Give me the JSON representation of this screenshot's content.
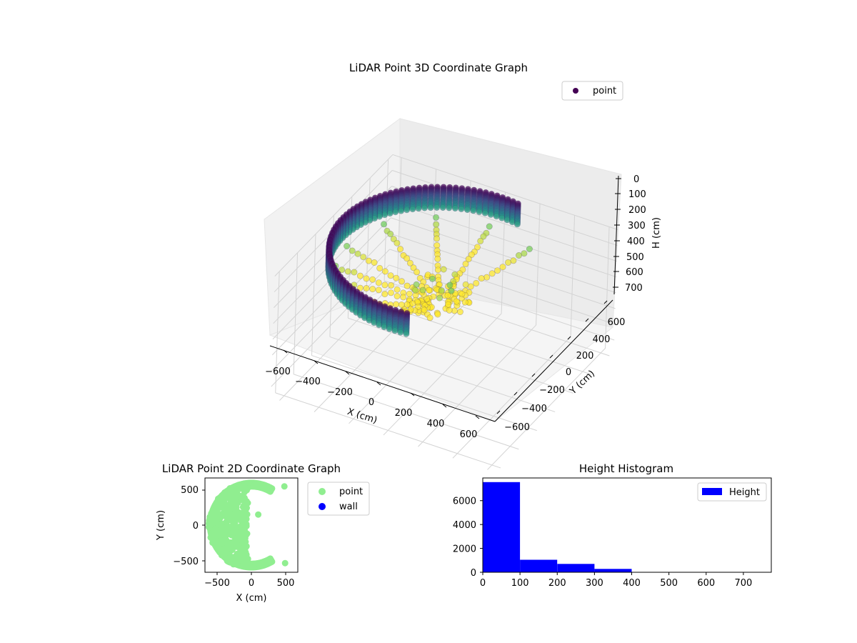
{
  "figure": {
    "background": "#ffffff"
  },
  "chart_data": [
    {
      "type": "scatter",
      "projection": "3d",
      "title": "LiDAR Point 3D Coordinate Graph",
      "xlabel": "X (cm)",
      "ylabel": "Y (cm)",
      "zlabel": "H (cm)",
      "xlim": [
        -650,
        650
      ],
      "ylim": [
        -650,
        650
      ],
      "zlim": [
        770,
        0
      ],
      "z_axis_inverted": true,
      "x_ticks": [
        "−600",
        "−400",
        "−200",
        "0",
        "200",
        "400",
        "600"
      ],
      "y_ticks": [
        "−600",
        "−400",
        "−200",
        "0",
        "200",
        "400",
        "600"
      ],
      "z_ticks": [
        "0",
        "100",
        "200",
        "300",
        "400",
        "500",
        "600",
        "700"
      ],
      "colormap": "viridis",
      "grid": true,
      "legend": {
        "position": "top-right",
        "entries": [
          {
            "label": "point",
            "color": "#440154"
          }
        ]
      },
      "series": [
        {
          "name": "point",
          "wall": {
            "radius_cm": 600,
            "start_angle_deg": 80,
            "end_angle_deg": 280,
            "height_range_cm": [
              0,
              130
            ],
            "angle_step_deg": 3,
            "height_step_cm": 10
          },
          "fan_lines_deg": [
            60,
            90,
            120,
            150,
            180,
            200,
            215,
            235,
            255
          ],
          "inner_cluster": {
            "x_range_cm": [
              -200,
              80
            ],
            "y_range_cm": [
              -100,
              180
            ],
            "height_cm": [
              200,
              400
            ]
          }
        }
      ]
    },
    {
      "type": "scatter",
      "title": "LiDAR Point 2D Coordinate Graph",
      "xlabel": "X (cm)",
      "ylabel": "Y (cm)",
      "xlim": [
        -680,
        680
      ],
      "ylim": [
        -680,
        680
      ],
      "x_ticks": [
        -500,
        0,
        500
      ],
      "y_ticks": [
        -500,
        0,
        500
      ],
      "x_tick_labels": [
        "−500",
        "0",
        "500"
      ],
      "y_tick_labels": [
        "−500",
        "0",
        "500"
      ],
      "legend": {
        "position": "outside-right",
        "entries": [
          {
            "label": "point",
            "color": "#90ee90"
          },
          {
            "label": "wall",
            "color": "#0000ff"
          }
        ]
      },
      "series": [
        {
          "name": "point",
          "color": "#90ee90",
          "arc": {
            "radius_cm": 600,
            "start_angle_deg": 60,
            "end_angle_deg": 300
          },
          "fill_region": {
            "x_range_cm": [
              -620,
              -50
            ],
            "y_range_cm": [
              -560,
              560
            ]
          },
          "outliers": [
            [
              100,
              150
            ],
            [
              -50,
              -480
            ],
            [
              480,
              550
            ],
            [
              490,
              -540
            ],
            [
              160,
              -540
            ]
          ]
        },
        {
          "name": "wall",
          "color": "#0000ff",
          "points": []
        }
      ]
    },
    {
      "type": "bar",
      "subtype": "histogram",
      "title": "Height Histogram",
      "xlim": [
        0,
        775
      ],
      "ylim": [
        0,
        7900
      ],
      "x_ticks": [
        0,
        100,
        200,
        300,
        400,
        500,
        600,
        700
      ],
      "y_ticks": [
        0,
        2000,
        4000,
        6000
      ],
      "bin_edges": [
        0,
        100,
        200,
        300,
        400,
        500,
        600,
        700,
        775
      ],
      "values": [
        7550,
        1050,
        700,
        280,
        15,
        10,
        5,
        5
      ],
      "legend": {
        "position": "top-right",
        "entries": [
          {
            "label": "Height",
            "color": "#0000ff"
          }
        ]
      },
      "series": [
        {
          "name": "Height",
          "color": "#0000ff"
        }
      ]
    }
  ]
}
